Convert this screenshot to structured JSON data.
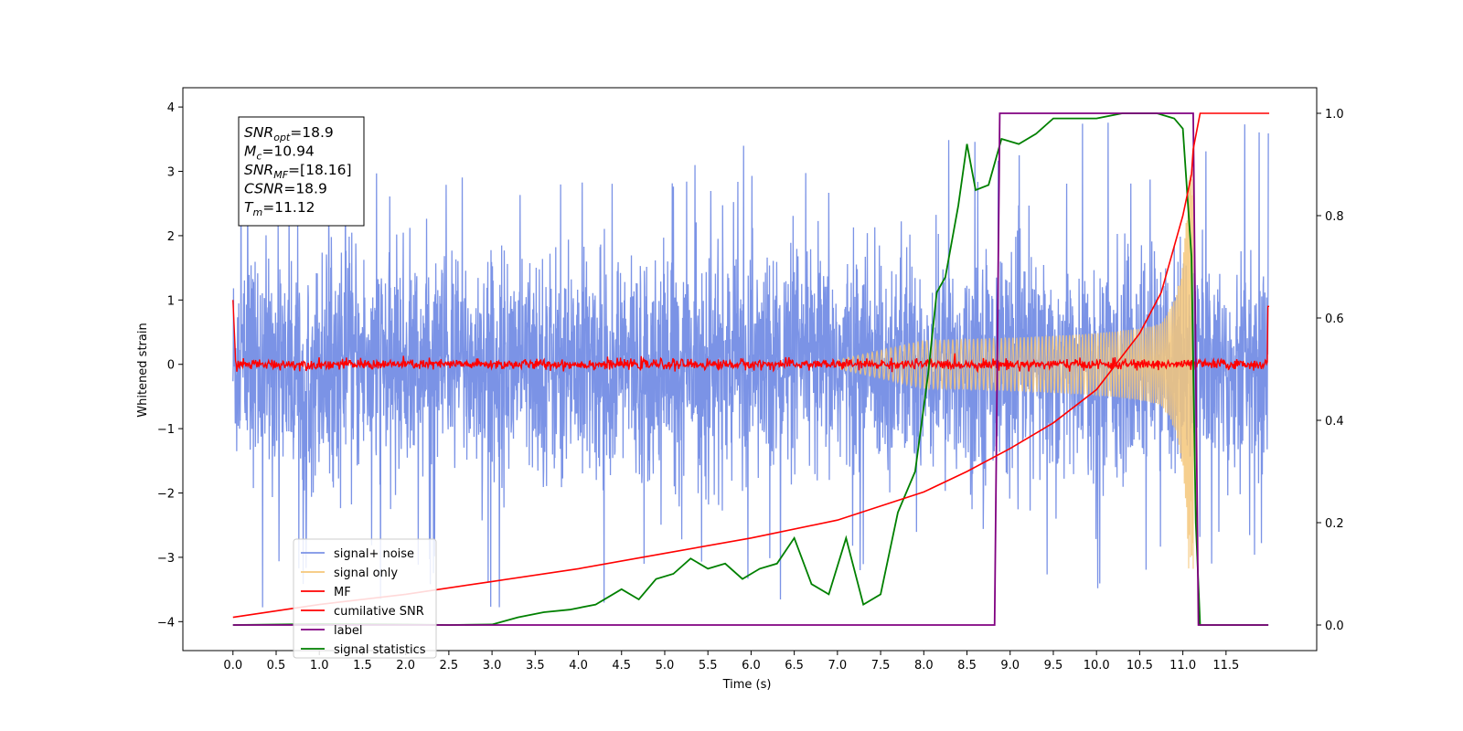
{
  "chart_data": {
    "type": "line",
    "xlabel": "Time (s)",
    "ylabel": "Whitened strain",
    "xlim": [
      -0.58,
      12.55
    ],
    "ylim": [
      -4.45,
      4.3
    ],
    "y2lim": [
      -0.05,
      1.05
    ],
    "xticks": [
      "0.0",
      "0.5",
      "1.0",
      "1.5",
      "2.0",
      "2.5",
      "3.0",
      "3.5",
      "4.0",
      "4.5",
      "5.0",
      "5.5",
      "6.0",
      "6.5",
      "7.0",
      "7.5",
      "8.0",
      "8.5",
      "9.0",
      "9.5",
      "10.0",
      "10.5",
      "11.0",
      "11.5"
    ],
    "yticks": [
      "4",
      "3",
      "2",
      "1",
      "0",
      "−1",
      "−2",
      "−3",
      "−4"
    ],
    "y2ticks": [
      "1.0",
      "0.8",
      "0.6",
      "0.4",
      "0.2",
      "0.0"
    ],
    "info_box": [
      {
        "sym": "SNR",
        "sub": "opt",
        "val": "=18.9"
      },
      {
        "sym": "M",
        "sub": "c",
        "val": "=10.94"
      },
      {
        "sym": "SNR",
        "sub": "MF",
        "val": "=[18.16]"
      },
      {
        "sym": "CSNR",
        "sub": "",
        "val": "=18.9"
      },
      {
        "sym": "T",
        "sub": "m",
        "val": "=11.12"
      }
    ],
    "legend": {
      "placement": "lower-left",
      "entries": [
        {
          "label": "signal+ noise",
          "color": "#7b93e6"
        },
        {
          "label": "signal only",
          "color": "#f5c77a"
        },
        {
          "label": "MF",
          "color": "#ff0000"
        },
        {
          "label": "cumilative SNR",
          "color": "#ff0000"
        },
        {
          "label": "label",
          "color": "#800080"
        },
        {
          "label": "signal statistics",
          "color": "#008000"
        }
      ]
    },
    "series": [
      {
        "name": "signal+ noise",
        "axis": "left",
        "description_values": "white noise, roughly ±2.5 amplitude with spikes to ±3.9, spanning t=0 to 11.99 s"
      },
      {
        "name": "signal only",
        "axis": "left",
        "chirp": {
          "start": 7.0,
          "merger": 11.12,
          "peak_amplitude": 3.2
        }
      },
      {
        "name": "MF",
        "axis": "left",
        "level": 0.0,
        "endpoints": [
          [
            0.0,
            1.0
          ],
          [
            12.0,
            0.9
          ]
        ]
      },
      {
        "name": "cumilative SNR",
        "axis": "right",
        "x": [
          0.0,
          1.0,
          2.0,
          3.0,
          4.0,
          5.0,
          6.0,
          7.0,
          8.0,
          8.5,
          9.0,
          9.5,
          10.0,
          10.5,
          10.75,
          11.0,
          11.1,
          11.12,
          11.2,
          12.0
        ],
        "y": [
          0.015,
          0.04,
          0.06,
          0.085,
          0.11,
          0.14,
          0.17,
          0.205,
          0.26,
          0.3,
          0.345,
          0.395,
          0.46,
          0.57,
          0.65,
          0.8,
          0.88,
          0.93,
          1.0,
          1.0
        ]
      },
      {
        "name": "label",
        "axis": "right",
        "x": [
          0.0,
          8.82,
          8.88,
          11.12,
          11.18,
          11.99
        ],
        "y": [
          0.0,
          0.0,
          1.0,
          1.0,
          0.0,
          0.0
        ]
      },
      {
        "name": "signal statistics",
        "axis": "right",
        "x": [
          0.0,
          1.0,
          2.0,
          2.5,
          3.0,
          3.3,
          3.6,
          3.9,
          4.2,
          4.5,
          4.7,
          4.9,
          5.1,
          5.3,
          5.5,
          5.7,
          5.9,
          6.1,
          6.3,
          6.5,
          6.7,
          6.9,
          7.1,
          7.3,
          7.5,
          7.7,
          7.9,
          8.05,
          8.15,
          8.25,
          8.4,
          8.5,
          8.6,
          8.75,
          8.9,
          9.1,
          9.3,
          9.5,
          9.7,
          10.0,
          10.3,
          10.5,
          10.7,
          10.9,
          11.0,
          11.1,
          11.15,
          11.2,
          11.99
        ],
        "y": [
          0.0,
          0.002,
          0.001,
          0.0,
          0.001,
          0.015,
          0.025,
          0.03,
          0.04,
          0.07,
          0.05,
          0.09,
          0.1,
          0.13,
          0.11,
          0.12,
          0.09,
          0.11,
          0.12,
          0.17,
          0.08,
          0.06,
          0.17,
          0.04,
          0.06,
          0.22,
          0.3,
          0.49,
          0.65,
          0.68,
          0.82,
          0.94,
          0.85,
          0.86,
          0.95,
          0.94,
          0.96,
          0.99,
          0.99,
          0.99,
          1.0,
          1.0,
          1.0,
          0.99,
          0.97,
          0.72,
          0.2,
          0.0,
          0.0
        ]
      }
    ]
  }
}
